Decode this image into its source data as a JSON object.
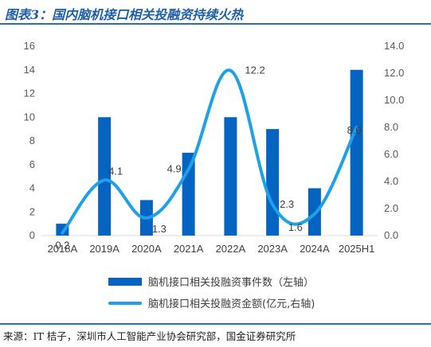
{
  "title": "图表3：国内脑机接口相关投融资持续火热",
  "source": "来源：IT 桔子，深圳市人工智能产业协会研究部，国金证券研究所",
  "chart_data": {
    "type": "bar",
    "categories": [
      "2018A",
      "2019A",
      "2020A",
      "2021A",
      "2022A",
      "2023A",
      "2024A",
      "2025H1"
    ],
    "series": [
      {
        "name": "脑机接口相关投融资事件数（左轴）",
        "type": "bar",
        "axis": "left",
        "color": "#0563C1",
        "values": [
          1,
          10,
          3,
          7,
          10,
          9,
          4,
          14
        ]
      },
      {
        "name": "脑机接口相关投融资金额(亿元,右轴)",
        "type": "line",
        "axis": "right",
        "color": "#1DA1E8",
        "values": [
          0.2,
          4.1,
          1.3,
          4.9,
          12.2,
          2.3,
          1.6,
          8.0
        ],
        "labels": [
          "0.2",
          "4.1",
          "1.3",
          "4.9",
          "12.2",
          "2.3",
          "1.6",
          "8.0"
        ]
      }
    ],
    "left_axis": {
      "min": 0,
      "max": 16,
      "ticks": [
        "0",
        "2",
        "4",
        "6",
        "8",
        "10",
        "12",
        "14",
        "16"
      ]
    },
    "right_axis": {
      "min": 0,
      "max": 14,
      "ticks": [
        "0.0",
        "2.0",
        "4.0",
        "6.0",
        "8.0",
        "10.0",
        "12.0",
        "14.0"
      ]
    },
    "grid": false,
    "legend_position": "bottom"
  }
}
